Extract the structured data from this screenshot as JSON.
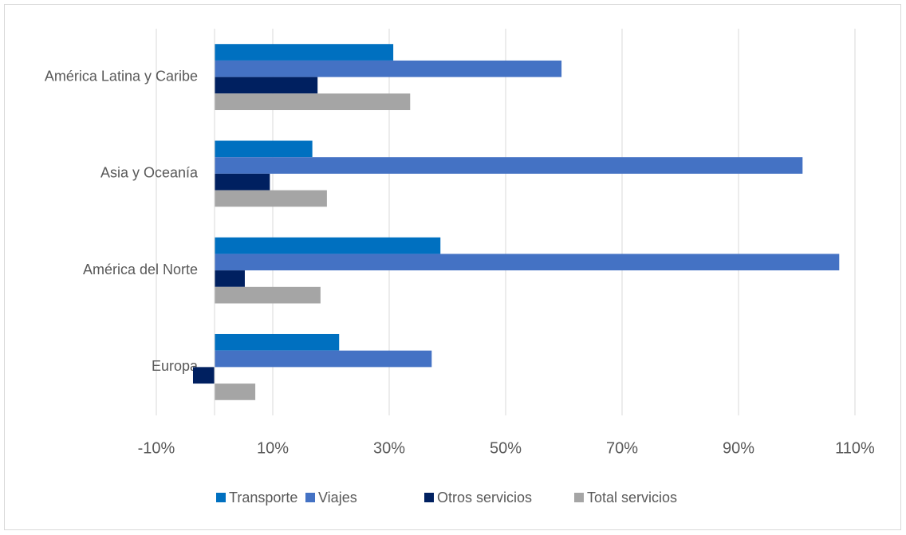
{
  "chart_data": {
    "type": "hbar",
    "categories": [
      "América Latina y Caribe",
      "Asia y Oceanía",
      "América del Norte",
      "Europa"
    ],
    "series": [
      {
        "name": "Transporte",
        "color": "#0070c0",
        "values": [
          30.7,
          16.8,
          38.8,
          21.4
        ]
      },
      {
        "name": "Viajes",
        "color": "#4472c4",
        "values": [
          59.6,
          101,
          107.3,
          37.3
        ]
      },
      {
        "name": "Otros servicios",
        "color": "#002060",
        "values": [
          17.7,
          9.5,
          5.2,
          -3.7
        ]
      },
      {
        "name": "Total servicios",
        "color": "#a5a5a5",
        "values": [
          33.6,
          19.3,
          18.2,
          7.0
        ]
      }
    ],
    "xlim": [
      -10,
      110
    ],
    "xticks": [
      {
        "value": -10,
        "label": "-10%"
      },
      {
        "value": 10,
        "label": "10%"
      },
      {
        "value": 30,
        "label": "30%"
      },
      {
        "value": 50,
        "label": "50%"
      },
      {
        "value": 70,
        "label": "70%"
      },
      {
        "value": 90,
        "label": "90%"
      },
      {
        "value": 110,
        "label": "110%"
      }
    ],
    "grid": true,
    "legend": "bottom"
  }
}
